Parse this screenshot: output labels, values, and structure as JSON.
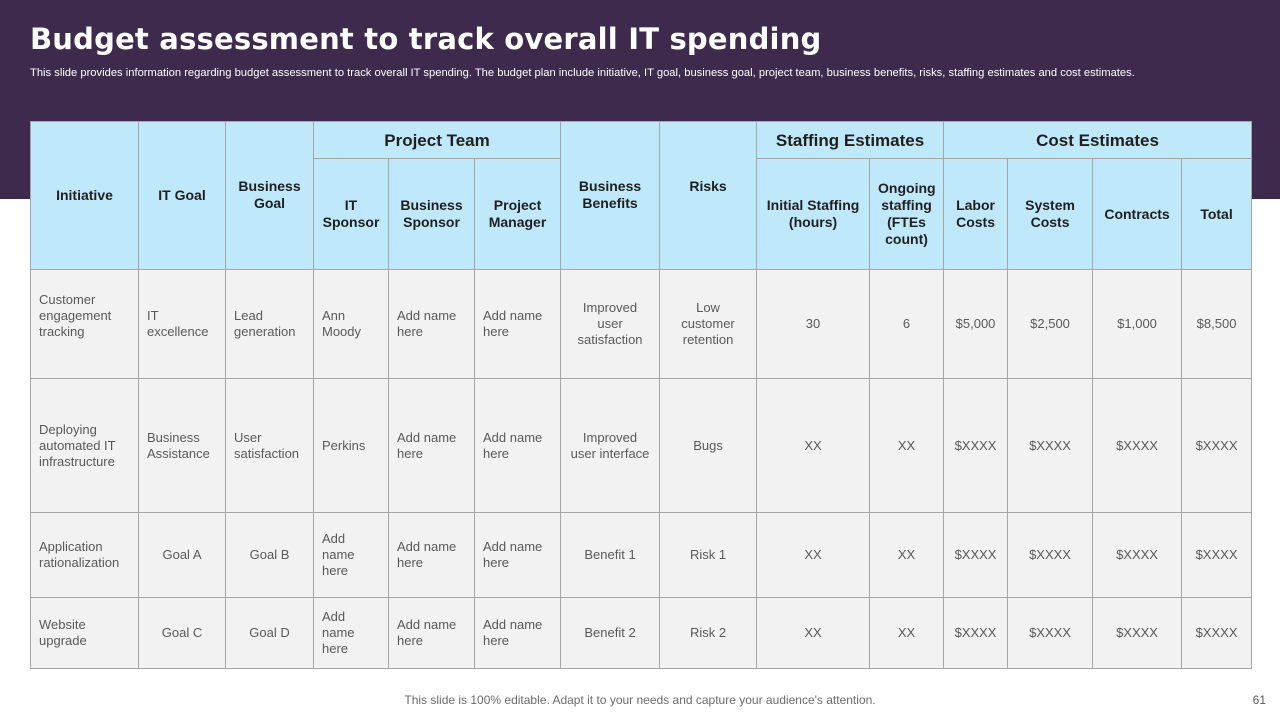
{
  "slide": {
    "title": "Budget assessment to track overall IT spending",
    "subtitle": "This slide provides information regarding budget assessment to track overall IT  spending. The budget plan include initiative, IT  goal, business goal, project team, business benefits, risks, staffing estimates and cost estimates.",
    "footer": "This slide is 100% editable. Adapt it to your needs and capture your audience's attention.",
    "page_number": "61"
  },
  "colors": {
    "banner": "#3e2a4c",
    "header_fill": "#bfe9fb",
    "cell_fill": "#f2f2f2",
    "grid": "#a6a6a6"
  },
  "table": {
    "headers": {
      "initiative": "Initiative",
      "it_goal": "IT Goal",
      "business_goal": "Business Goal",
      "project_team": "Project Team",
      "it_sponsor": "IT Sponsor",
      "business_sponsor": "Business Sponsor",
      "project_manager": "Project Manager",
      "business_benefits": "Business Benefits",
      "risks": "Risks",
      "staffing_estimates": "Staffing Estimates",
      "initial_staffing": "Initial Staffing (hours)",
      "ongoing_staffing": "Ongoing staffing (FTEs count)",
      "cost_estimates": "Cost Estimates",
      "labor_costs": "Labor Costs",
      "system_costs": "System Costs",
      "contracts": "Contracts",
      "total": "Total"
    },
    "rows": [
      [
        "Customer engagement tracking",
        "IT excellence",
        "Lead generation",
        "Ann Moody",
        "Add name here",
        "Add name here",
        "Improved user satisfaction",
        "Low customer retention",
        "30",
        "6",
        "$5,000",
        "$2,500",
        "$1,000",
        "$8,500"
      ],
      [
        "Deploying automated IT infrastructure",
        "Business Assistance",
        "User satisfaction",
        "Perkins",
        "Add name here",
        "Add name here",
        "Improved user interface",
        "Bugs",
        "XX",
        "XX",
        "$XXXX",
        "$XXXX",
        "$XXXX",
        "$XXXX"
      ],
      [
        "Application rationalization",
        "Goal A",
        "Goal B",
        "Add name here",
        "Add name here",
        "Add name here",
        "Benefit  1",
        "Risk 1",
        "XX",
        "XX",
        "$XXXX",
        "$XXXX",
        "$XXXX",
        "$XXXX"
      ],
      [
        "Website upgrade",
        "Goal C",
        "Goal D",
        "Add name here",
        "Add name here",
        "Add name here",
        "Benefit  2",
        "Risk 2",
        "XX",
        "XX",
        "$XXXX",
        "$XXXX",
        "$XXXX",
        "$XXXX"
      ]
    ]
  }
}
